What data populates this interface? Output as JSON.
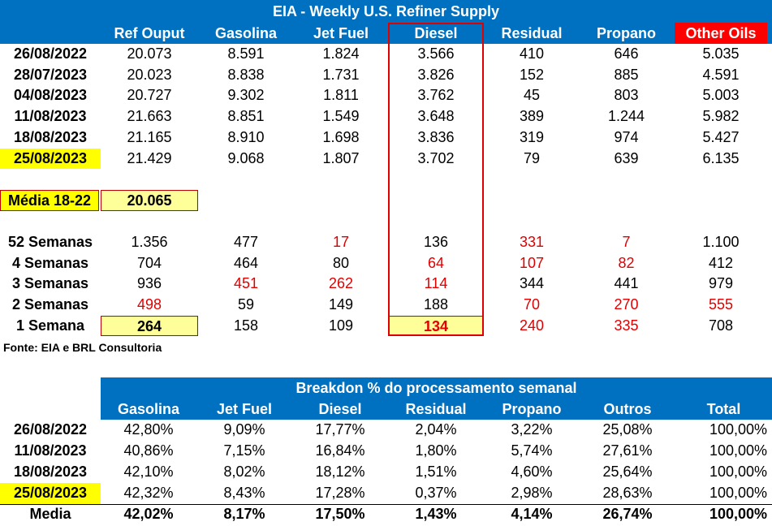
{
  "table1": {
    "title": "EIA - Weekly U.S. Refiner Supply",
    "headers": [
      "Ref Ouput",
      "Gasolina",
      "Jet Fuel",
      "Diesel",
      "Residual",
      "Propano",
      "Other Oils"
    ],
    "rows": [
      {
        "label": "26/08/2022",
        "values": [
          "20.073",
          "8.591",
          "1.824",
          "3.566",
          "410",
          "646",
          "5.035"
        ]
      },
      {
        "label": "28/07/2023",
        "values": [
          "20.023",
          "8.838",
          "1.731",
          "3.826",
          "152",
          "885",
          "4.591"
        ]
      },
      {
        "label": "04/08/2023",
        "values": [
          "20.727",
          "9.302",
          "1.811",
          "3.762",
          "45",
          "803",
          "5.003"
        ]
      },
      {
        "label": "11/08/2023",
        "values": [
          "21.663",
          "8.851",
          "1.549",
          "3.648",
          "389",
          "1.244",
          "5.982"
        ]
      },
      {
        "label": "18/08/2023",
        "values": [
          "21.165",
          "8.910",
          "1.698",
          "3.836",
          "319",
          "974",
          "5.427"
        ]
      },
      {
        "label": "25/08/2023",
        "values": [
          "21.429",
          "9.068",
          "1.807",
          "3.702",
          "79",
          "639",
          "6.135"
        ]
      }
    ],
    "media_label": "Média 18-22",
    "media_value": "20.065",
    "change_rows": [
      {
        "label": "52 Semanas",
        "values": [
          "1.356",
          "477",
          "17",
          "136",
          "331",
          "7",
          "1.100"
        ]
      },
      {
        "label": "4 Semanas",
        "values": [
          "704",
          "464",
          "80",
          "64",
          "107",
          "82",
          "412"
        ]
      },
      {
        "label": "3 Semanas",
        "values": [
          "936",
          "451",
          "262",
          "114",
          "344",
          "441",
          "979"
        ]
      },
      {
        "label": "2 Semanas",
        "values": [
          "498",
          "59",
          "149",
          "188",
          "70",
          "270",
          "555"
        ]
      },
      {
        "label": "1 Semana",
        "values": [
          "264",
          "158",
          "109",
          "134",
          "240",
          "335",
          "708"
        ]
      }
    ],
    "negative_color": "#E00000",
    "header_color": "#0070C0",
    "highlight_color": "#FFFF00"
  },
  "source": "Fonte: EIA e BRL Consultoria",
  "table2": {
    "title": "Breakdon % do processamento semanal",
    "headers": [
      "Gasolina",
      "Jet Fuel",
      "Diesel",
      "Residual",
      "Propano",
      "Outros",
      "Total"
    ],
    "rows": [
      {
        "label": "26/08/2022",
        "values": [
          "42,80%",
          "9,09%",
          "17,77%",
          "2,04%",
          "3,22%",
          "25,08%",
          "100,00%"
        ]
      },
      {
        "label": "11/08/2023",
        "values": [
          "40,86%",
          "7,15%",
          "16,84%",
          "1,80%",
          "5,74%",
          "27,61%",
          "100,00%"
        ]
      },
      {
        "label": "18/08/2023",
        "values": [
          "42,10%",
          "8,02%",
          "18,12%",
          "1,51%",
          "4,60%",
          "25,64%",
          "100,00%"
        ]
      },
      {
        "label": "25/08/2023",
        "values": [
          "42,32%",
          "8,43%",
          "17,28%",
          "0,37%",
          "2,98%",
          "28,63%",
          "100,00%"
        ]
      }
    ],
    "media": {
      "label": "Media",
      "values": [
        "42,02%",
        "8,17%",
        "17,50%",
        "1,43%",
        "4,14%",
        "26,74%",
        "100,00%"
      ]
    }
  }
}
